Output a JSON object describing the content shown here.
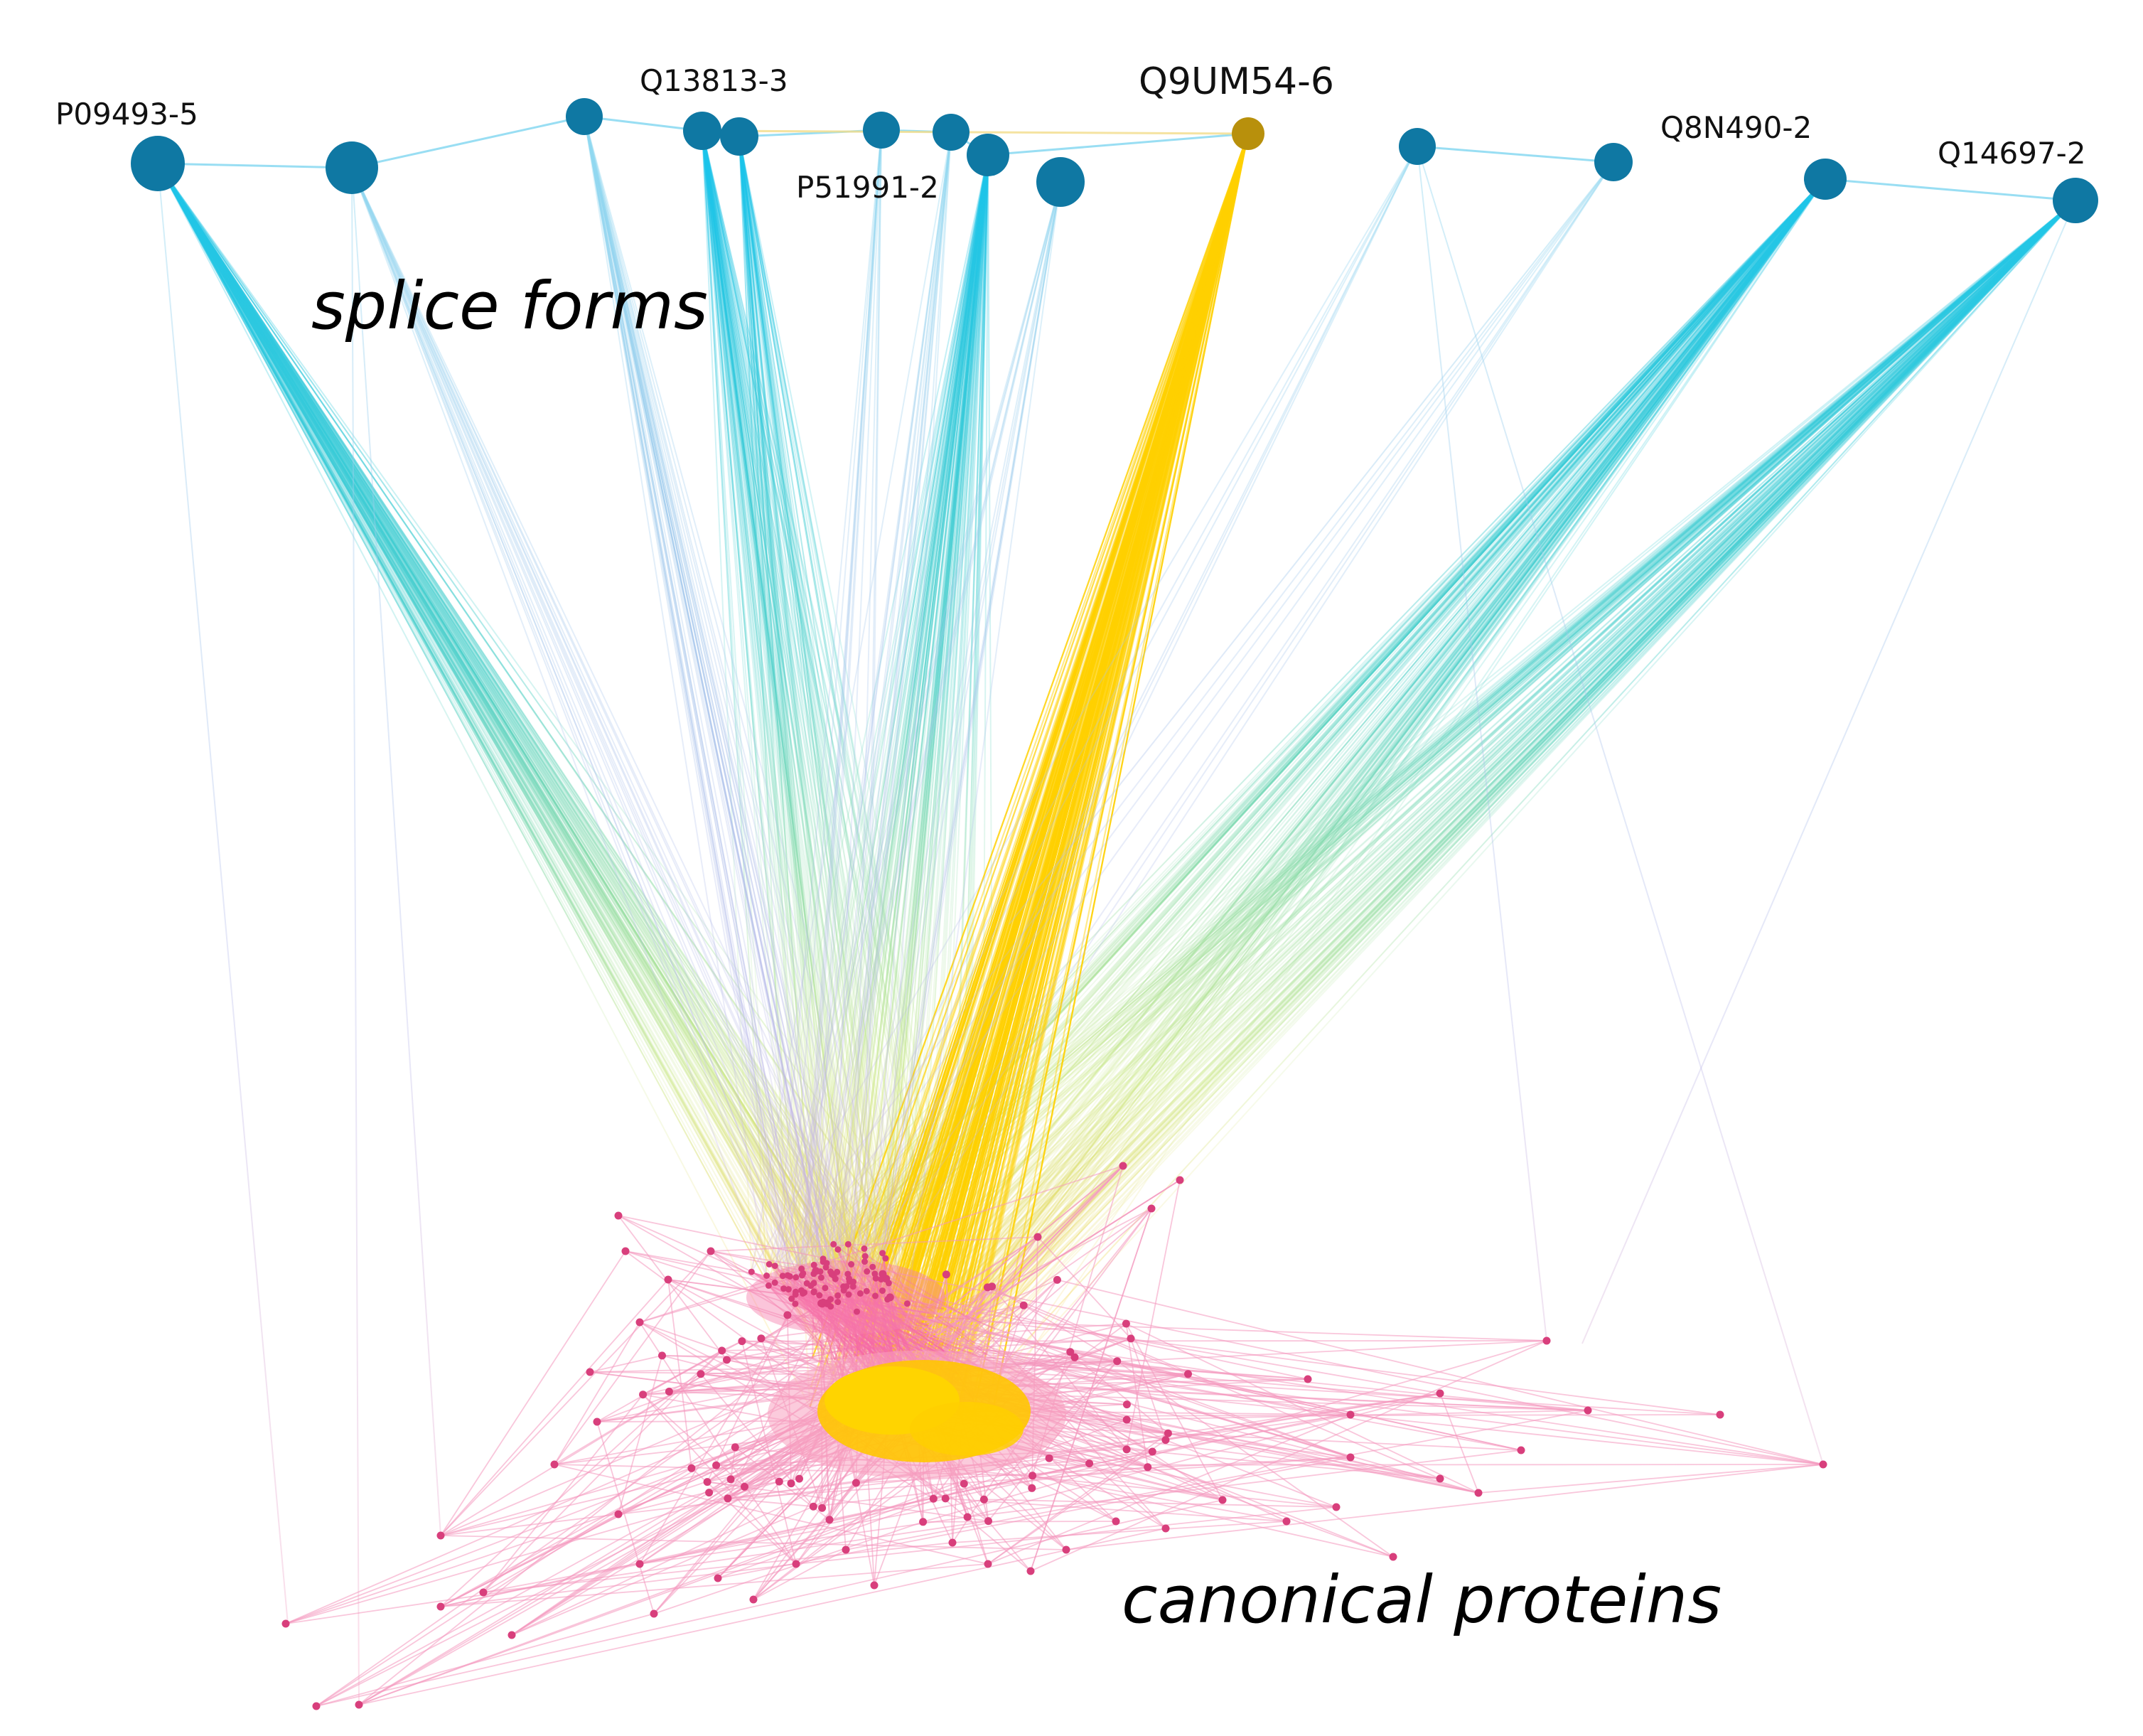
{
  "colors": {
    "splice_node": "#0f78a3",
    "highlight_node": "#b8900c",
    "highlight_edge": "#ffd000",
    "protein_node": "#d83f7c",
    "protein_edge": "#f7a1c2",
    "edge_gradient": [
      "#21c5e6",
      "#5fd3c8",
      "#c8e88b",
      "#f4d44c"
    ]
  },
  "labels": {
    "splice_forms": "splice forms",
    "canonical_proteins": "canonical proteins",
    "q9um54_6": "Q9UM54-6",
    "p09493_5": "P09493-5",
    "q13813_3": "Q13813-3",
    "p51991_2": "P51991-2",
    "q8n490_2": "Q8N490-2",
    "q14697_2": "Q14697-2"
  }
}
